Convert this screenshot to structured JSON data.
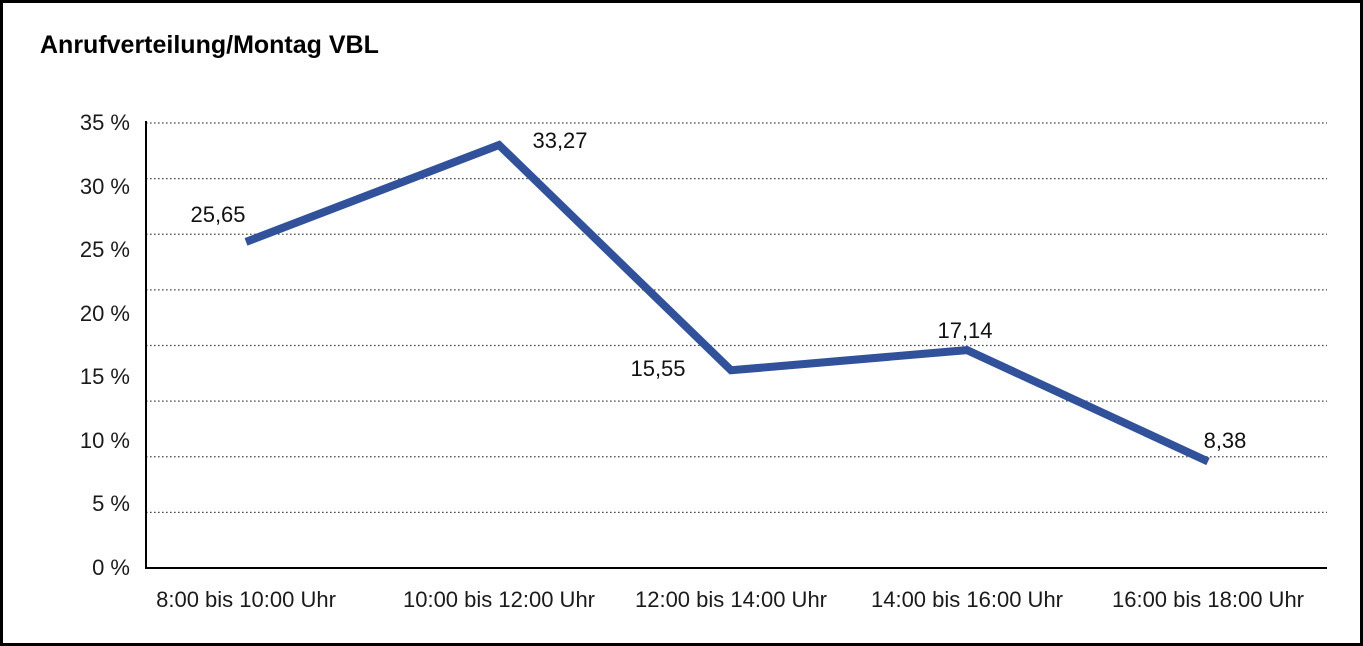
{
  "window": {
    "background_color": "#ffffff",
    "border_color": "#000000"
  },
  "chart_data": {
    "type": "line",
    "title": "Anrufverteilung/Montag VBL",
    "categories": [
      "8:00 bis 10:00 Uhr",
      "10:00 bis 12:00 Uhr",
      "12:00 bis 14:00 Uhr",
      "14:00 bis 16:00 Uhr",
      "16:00 bis 18:00 Uhr"
    ],
    "values": [
      25.65,
      33.27,
      15.55,
      17.14,
      8.38
    ],
    "value_labels": [
      "25,65",
      "33,27",
      "15,55",
      "17,14",
      "8,38"
    ],
    "y_ticks": [
      "35 %",
      "30 %",
      "25 %",
      "20 %",
      "15 %",
      "10 %",
      "5 %",
      "0 %"
    ],
    "y_tick_values": [
      35,
      30,
      25,
      20,
      15,
      10,
      5,
      0
    ],
    "ylim": [
      0,
      35
    ],
    "unit": "%",
    "xlabel": "",
    "ylabel": "",
    "legend": "none",
    "grid": "horizontal-dotted",
    "line_color": "#31519B",
    "gridline_color": "#4a4a4a",
    "axis_color": "#000000"
  }
}
